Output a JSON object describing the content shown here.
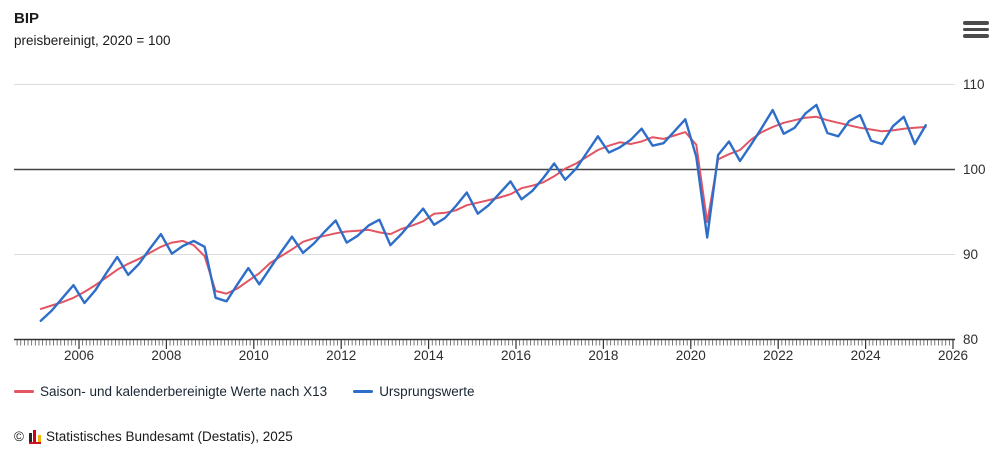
{
  "header": {
    "title": "BIP",
    "subtitle": "preisbereinigt, 2020 = 100"
  },
  "menu_icon": "hamburger-menu-icon",
  "chart_data": {
    "type": "line",
    "title": "BIP",
    "subtitle": "preisbereinigt, 2020 = 100",
    "x_axis": {
      "min": 2004.5,
      "max": 2026.05,
      "tick_labels": [
        "2006",
        "2008",
        "2010",
        "2012",
        "2014",
        "2016",
        "2018",
        "2020",
        "2022",
        "2024",
        "2026"
      ],
      "tick_years": [
        2006,
        2008,
        2010,
        2012,
        2014,
        2016,
        2018,
        2020,
        2022,
        2024,
        2026
      ],
      "minor_tick_step_years": 0.0833
    },
    "y_axis": {
      "min": 80,
      "max": 110,
      "ticks": [
        80,
        90,
        100,
        110
      ],
      "reference_line": 100,
      "labels_side": "right",
      "grid": "horizontal-only"
    },
    "sampling": {
      "frequency": "quarterly",
      "start_quarter": "2005-Q1",
      "end_quarter": "2025-Q2",
      "start_time": 2005.125,
      "step_years": 0.25
    },
    "legend_position": "bottom-left",
    "series": [
      {
        "id": "adjusted",
        "name": "Saison- und kalenderbereinigte Werte nach X13",
        "color": "#e25563",
        "values": [
          83.6,
          84.0,
          84.4,
          84.9,
          85.6,
          86.4,
          87.3,
          88.2,
          88.9,
          89.5,
          90.2,
          90.9,
          91.4,
          91.6,
          91.1,
          89.8,
          85.7,
          85.4,
          86.0,
          86.9,
          87.8,
          89.0,
          89.8,
          90.6,
          91.5,
          91.9,
          92.2,
          92.5,
          92.7,
          92.8,
          92.9,
          92.6,
          92.4,
          93.0,
          93.4,
          93.9,
          94.8,
          94.9,
          95.2,
          95.8,
          96.1,
          96.4,
          96.7,
          97.1,
          97.8,
          98.1,
          98.5,
          99.2,
          100.1,
          100.7,
          101.5,
          102.3,
          102.8,
          103.2,
          103.0,
          103.3,
          103.8,
          103.6,
          104.0,
          104.4,
          102.9,
          93.8,
          101.2,
          101.8,
          102.3,
          103.5,
          104.4,
          105.0,
          105.5,
          105.8,
          106.1,
          106.2,
          105.8,
          105.5,
          105.2,
          104.9,
          104.7,
          104.5,
          104.6,
          104.8,
          104.9,
          105.0
        ]
      },
      {
        "id": "original",
        "name": "Ursprungswerte",
        "color": "#2e6ec8",
        "values": [
          82.2,
          83.4,
          84.9,
          86.4,
          84.3,
          85.8,
          87.8,
          89.7,
          87.6,
          88.9,
          90.7,
          92.4,
          90.1,
          91.0,
          91.6,
          90.9,
          84.9,
          84.5,
          86.5,
          88.4,
          86.5,
          88.4,
          90.3,
          92.1,
          90.2,
          91.3,
          92.7,
          94.0,
          91.4,
          92.2,
          93.4,
          94.1,
          91.1,
          92.4,
          93.9,
          95.4,
          93.5,
          94.3,
          95.7,
          97.3,
          94.8,
          95.8,
          97.2,
          98.6,
          96.5,
          97.5,
          99.0,
          100.7,
          98.8,
          100.1,
          102.0,
          103.9,
          102.0,
          102.6,
          103.5,
          104.8,
          102.8,
          103.1,
          104.5,
          105.9,
          101.5,
          92.0,
          101.7,
          103.3,
          101.0,
          102.9,
          104.9,
          107.0,
          104.2,
          104.9,
          106.6,
          107.6,
          104.3,
          103.9,
          105.7,
          106.4,
          103.4,
          103.0,
          105.1,
          106.2,
          103.0,
          105.2
        ]
      }
    ],
    "colors": {
      "grid_line": "#dcdcdc",
      "reference_line": "#454545",
      "axis_line": "#333333",
      "tick_text": "#2e2e2e"
    }
  },
  "footer": {
    "copyright_symbol": "©",
    "logo": "destatis-bar-chart-logo",
    "attribution_text": "Statistisches Bundesamt (Destatis), 2025"
  }
}
